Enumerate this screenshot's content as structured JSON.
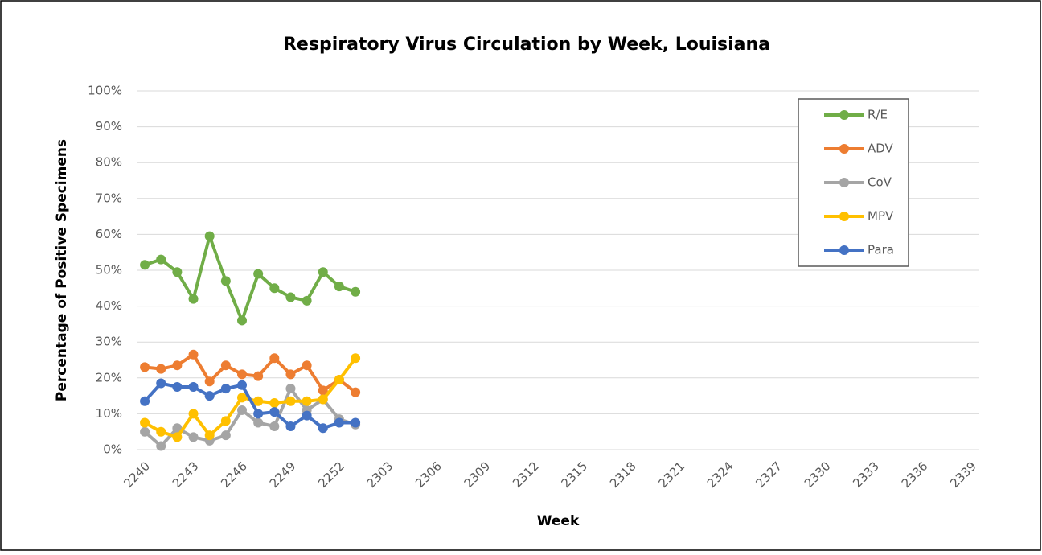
{
  "chart_data": {
    "type": "line",
    "title": "Respiratory Virus Circulation by Week, Louisiana",
    "x_label": "Week",
    "y_label": "Percentage of Positive Specimens",
    "categories": [
      "2240",
      null,
      null,
      "2243",
      null,
      null,
      "2246",
      null,
      null,
      "2249",
      null,
      null,
      "2252",
      null,
      null,
      "2303",
      null,
      null,
      "2306",
      null,
      null,
      "2309",
      null,
      null,
      "2312",
      null,
      null,
      "2315",
      null,
      null,
      "2318",
      null,
      null,
      "2321",
      null,
      null,
      "2324",
      null,
      null,
      "2327",
      null,
      null,
      "2330",
      null,
      null,
      "2333",
      null,
      null,
      "2336",
      null,
      null,
      "2339"
    ],
    "series": [
      {
        "name": "R/E",
        "color": "#70ad47",
        "values": [
          51.5,
          53,
          49.5,
          42,
          59.5,
          47,
          36,
          49,
          45,
          42.5,
          41.5,
          49.5,
          45.5,
          44,
          null,
          null,
          null,
          null,
          null,
          null,
          null,
          null,
          null,
          null,
          null,
          null,
          null,
          null,
          null,
          null,
          null,
          null,
          null,
          null,
          null,
          null,
          null,
          null,
          null,
          null,
          null,
          null,
          null,
          null,
          null,
          null,
          null,
          null,
          null,
          null,
          null,
          null
        ]
      },
      {
        "name": "ADV",
        "color": "#ed7d31",
        "values": [
          23,
          22.5,
          23.5,
          26.5,
          19,
          23.5,
          21,
          20.5,
          25.5,
          21,
          23.5,
          16.5,
          19.5,
          16,
          null,
          null,
          null,
          null,
          null,
          null,
          null,
          null,
          null,
          null,
          null,
          null,
          null,
          null,
          null,
          null,
          null,
          null,
          null,
          null,
          null,
          null,
          null,
          null,
          null,
          null,
          null,
          null,
          null,
          null,
          null,
          null,
          null,
          null,
          null,
          null,
          null,
          null
        ]
      },
      {
        "name": "CoV",
        "color": "#a5a5a5",
        "values": [
          5,
          1,
          6,
          3.5,
          2.5,
          4,
          11,
          7.5,
          6.5,
          17,
          11,
          14,
          8.5,
          7,
          null,
          null,
          null,
          null,
          null,
          null,
          null,
          null,
          null,
          null,
          null,
          null,
          null,
          null,
          null,
          null,
          null,
          null,
          null,
          null,
          null,
          null,
          null,
          null,
          null,
          null,
          null,
          null,
          null,
          null,
          null,
          null,
          null,
          null,
          null,
          null,
          null,
          null
        ]
      },
      {
        "name": "MPV",
        "color": "#ffc000",
        "values": [
          7.5,
          5,
          3.5,
          10,
          4,
          8,
          14.5,
          13.5,
          13,
          13.5,
          13.5,
          14,
          19.5,
          25.5,
          null,
          null,
          null,
          null,
          null,
          null,
          null,
          null,
          null,
          null,
          null,
          null,
          null,
          null,
          null,
          null,
          null,
          null,
          null,
          null,
          null,
          null,
          null,
          null,
          null,
          null,
          null,
          null,
          null,
          null,
          null,
          null,
          null,
          null,
          null,
          null,
          null,
          null
        ]
      },
      {
        "name": "Para",
        "color": "#4472c4",
        "values": [
          13.5,
          18.5,
          17.5,
          17.5,
          15,
          17,
          18,
          10,
          10.5,
          6.5,
          9.5,
          6,
          7.5,
          7.5,
          null,
          null,
          null,
          null,
          null,
          null,
          null,
          null,
          null,
          null,
          null,
          null,
          null,
          null,
          null,
          null,
          null,
          null,
          null,
          null,
          null,
          null,
          null,
          null,
          null,
          null,
          null,
          null,
          null,
          null,
          null,
          null,
          null,
          null,
          null,
          null,
          null,
          null
        ]
      }
    ],
    "ylim": [
      0,
      100
    ],
    "yticks": [
      {
        "value": 0,
        "label": "0%"
      },
      {
        "value": 10,
        "label": "10%"
      },
      {
        "value": 20,
        "label": "20%"
      },
      {
        "value": 30,
        "label": "30%"
      },
      {
        "value": 40,
        "label": "40%"
      },
      {
        "value": 50,
        "label": "50%"
      },
      {
        "value": 60,
        "label": "60%"
      },
      {
        "value": 70,
        "label": "70%"
      },
      {
        "value": 80,
        "label": "80%"
      },
      {
        "value": 90,
        "label": "90%"
      },
      {
        "value": 100,
        "label": "100%"
      }
    ],
    "grid": true,
    "legend": "top-right"
  }
}
